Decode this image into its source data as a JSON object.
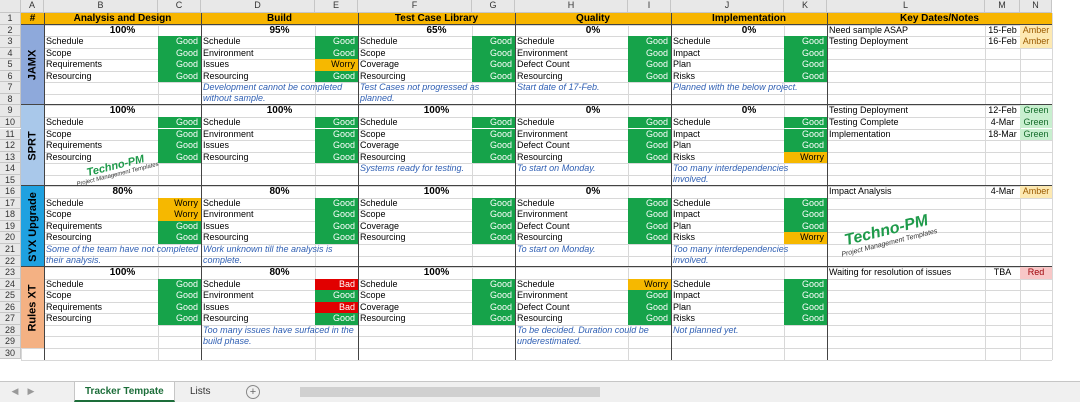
{
  "columns": [
    "A",
    "B",
    "C",
    "D",
    "E",
    "F",
    "G",
    "H",
    "I",
    "J",
    "K",
    "L",
    "M",
    "N"
  ],
  "header_row": {
    "hash": "#",
    "sections": [
      "Analysis and Design",
      "Build",
      "Test Case Library",
      "Quality",
      "Implementation"
    ],
    "key_dates": "Key Dates/Notes"
  },
  "projects": [
    {
      "name": "JAMX",
      "sections": [
        {
          "pct": "100%",
          "items": [
            {
              "label": "Schedule",
              "status": "Good"
            },
            {
              "label": "Scope",
              "status": "Good"
            },
            {
              "label": "Requirements",
              "status": "Good"
            },
            {
              "label": "Resourcing",
              "status": "Good"
            }
          ],
          "note": ""
        },
        {
          "pct": "95%",
          "items": [
            {
              "label": "Schedule",
              "status": "Good"
            },
            {
              "label": "Environment",
              "status": "Good"
            },
            {
              "label": "Issues",
              "status": "Worry"
            },
            {
              "label": "Resourcing",
              "status": "Good"
            }
          ],
          "note": "Development cannot be completed without sample."
        },
        {
          "pct": "65%",
          "items": [
            {
              "label": "Schedule",
              "status": "Good"
            },
            {
              "label": "Scope",
              "status": "Good"
            },
            {
              "label": "Coverage",
              "status": "Good"
            },
            {
              "label": "Resourcing",
              "status": "Good"
            }
          ],
          "note": "Test Cases not progressed as planned."
        },
        {
          "pct": "0%",
          "items": [
            {
              "label": "Schedule",
              "status": "Good"
            },
            {
              "label": "Environment",
              "status": "Good"
            },
            {
              "label": "Defect Count",
              "status": "Good"
            },
            {
              "label": "Resourcing",
              "status": "Good"
            }
          ],
          "note": "Start date of 17-Feb."
        },
        {
          "pct": "0%",
          "items": [
            {
              "label": "Schedule",
              "status": "Good"
            },
            {
              "label": "Impact",
              "status": "Good"
            },
            {
              "label": "Plan",
              "status": "Good"
            },
            {
              "label": "Risks",
              "status": "Good"
            }
          ],
          "note": "Planned with the below project."
        }
      ],
      "keydates": [
        {
          "text": "Need sample ASAP",
          "date": "15-Feb",
          "rag": "Amber"
        },
        {
          "text": "Testing Deployment",
          "date": "16-Feb",
          "rag": "Amber"
        }
      ]
    },
    {
      "name": "SPRT",
      "sections": [
        {
          "pct": "100%",
          "items": [
            {
              "label": "Schedule",
              "status": "Good"
            },
            {
              "label": "Scope",
              "status": "Good"
            },
            {
              "label": "Requirements",
              "status": "Good"
            },
            {
              "label": "Resourcing",
              "status": "Good"
            }
          ],
          "note": ""
        },
        {
          "pct": "100%",
          "items": [
            {
              "label": "Schedule",
              "status": "Good"
            },
            {
              "label": "Environment",
              "status": "Good"
            },
            {
              "label": "Issues",
              "status": "Good"
            },
            {
              "label": "Resourcing",
              "status": "Good"
            }
          ],
          "note": ""
        },
        {
          "pct": "100%",
          "items": [
            {
              "label": "Schedule",
              "status": "Good"
            },
            {
              "label": "Scope",
              "status": "Good"
            },
            {
              "label": "Coverage",
              "status": "Good"
            },
            {
              "label": "Resourcing",
              "status": "Good"
            }
          ],
          "note": "Systems ready for testing."
        },
        {
          "pct": "0%",
          "items": [
            {
              "label": "Schedule",
              "status": "Good"
            },
            {
              "label": "Environment",
              "status": "Good"
            },
            {
              "label": "Defect Count",
              "status": "Good"
            },
            {
              "label": "Resourcing",
              "status": "Good"
            }
          ],
          "note": "To start on Monday."
        },
        {
          "pct": "0%",
          "items": [
            {
              "label": "Schedule",
              "status": "Good"
            },
            {
              "label": "Impact",
              "status": "Good"
            },
            {
              "label": "Plan",
              "status": "Good"
            },
            {
              "label": "Risks",
              "status": "Worry"
            }
          ],
          "note": "Too many interdependencies involved."
        }
      ],
      "keydates": [
        {
          "text": "Testing Deployment",
          "date": "12-Feb",
          "rag": "Green"
        },
        {
          "text": "Testing Complete",
          "date": "4-Mar",
          "rag": "Green"
        },
        {
          "text": "Implementation",
          "date": "18-Mar",
          "rag": "Green"
        }
      ]
    },
    {
      "name": "SYX Upgrade",
      "sections": [
        {
          "pct": "80%",
          "items": [
            {
              "label": "Schedule",
              "status": "Worry"
            },
            {
              "label": "Scope",
              "status": "Worry"
            },
            {
              "label": "Requirements",
              "status": "Good"
            },
            {
              "label": "Resourcing",
              "status": "Good"
            }
          ],
          "note": "Some of the team have not completed their analysis."
        },
        {
          "pct": "80%",
          "items": [
            {
              "label": "Schedule",
              "status": "Good"
            },
            {
              "label": "Environment",
              "status": "Good"
            },
            {
              "label": "Issues",
              "status": "Good"
            },
            {
              "label": "Resourcing",
              "status": "Good"
            }
          ],
          "note": "Work unknown till the analysis is complete."
        },
        {
          "pct": "100%",
          "items": [
            {
              "label": "Schedule",
              "status": "Good"
            },
            {
              "label": "Scope",
              "status": "Good"
            },
            {
              "label": "Coverage",
              "status": "Good"
            },
            {
              "label": "Resourcing",
              "status": "Good"
            }
          ],
          "note": ""
        },
        {
          "pct": "0%",
          "items": [
            {
              "label": "Schedule",
              "status": "Good"
            },
            {
              "label": "Environment",
              "status": "Good"
            },
            {
              "label": "Defect Count",
              "status": "Good"
            },
            {
              "label": "Resourcing",
              "status": "Good"
            }
          ],
          "note": "To start on Monday."
        },
        {
          "pct": "",
          "items": [
            {
              "label": "Schedule",
              "status": "Good"
            },
            {
              "label": "Impact",
              "status": "Good"
            },
            {
              "label": "Plan",
              "status": "Good"
            },
            {
              "label": "Risks",
              "status": "Worry"
            }
          ],
          "note": "Too many interdependencies involved."
        }
      ],
      "keydates": [
        {
          "text": "Impact Analysis",
          "date": "4-Mar",
          "rag": "Amber"
        }
      ]
    },
    {
      "name": "Rules XT",
      "sections": [
        {
          "pct": "100%",
          "items": [
            {
              "label": "Schedule",
              "status": "Good"
            },
            {
              "label": "Scope",
              "status": "Good"
            },
            {
              "label": "Requirements",
              "status": "Good"
            },
            {
              "label": "Resourcing",
              "status": "Good"
            }
          ],
          "note": ""
        },
        {
          "pct": "80%",
          "items": [
            {
              "label": "Schedule",
              "status": "Bad"
            },
            {
              "label": "Environment",
              "status": "Good"
            },
            {
              "label": "Issues",
              "status": "Bad"
            },
            {
              "label": "Resourcing",
              "status": "Good"
            }
          ],
          "note": "Too many issues have surfaced in the build phase."
        },
        {
          "pct": "100%",
          "items": [
            {
              "label": "Schedule",
              "status": "Good"
            },
            {
              "label": "Scope",
              "status": "Good"
            },
            {
              "label": "Coverage",
              "status": "Good"
            },
            {
              "label": "Resourcing",
              "status": "Good"
            }
          ],
          "note": ""
        },
        {
          "pct": "",
          "items": [
            {
              "label": "Schedule",
              "status": "Worry"
            },
            {
              "label": "Environment",
              "status": "Good"
            },
            {
              "label": "Defect Count",
              "status": "Good"
            },
            {
              "label": "Resourcing",
              "status": "Good"
            }
          ],
          "note": "To be decided. Duration could be underestimated."
        },
        {
          "pct": "",
          "items": [
            {
              "label": "Schedule",
              "status": "Good"
            },
            {
              "label": "Impact",
              "status": "Good"
            },
            {
              "label": "Plan",
              "status": "Good"
            },
            {
              "label": "Risks",
              "status": "Good"
            }
          ],
          "note": "Not planned yet."
        }
      ],
      "keydates": [
        {
          "text": "Waiting for resolution of issues",
          "date": "TBA",
          "rag": "Red"
        }
      ]
    }
  ],
  "project_colors": [
    "#8ea9db",
    "#a9c8ea",
    "#1fa1e0",
    "#f4b183"
  ],
  "status_colors": {
    "Good": "#16a34a",
    "Worry": "#f6b800",
    "Bad": "#e10000"
  },
  "watermarks": [
    {
      "title": "Techno-PM",
      "subtitle": "Project Management Templates"
    },
    {
      "title": "Techno-PM",
      "subtitle": "Project Management Templates"
    }
  ],
  "tabs": {
    "sheets": [
      "Tracker Tempate",
      "Lists"
    ],
    "active": "Tracker Tempate"
  }
}
